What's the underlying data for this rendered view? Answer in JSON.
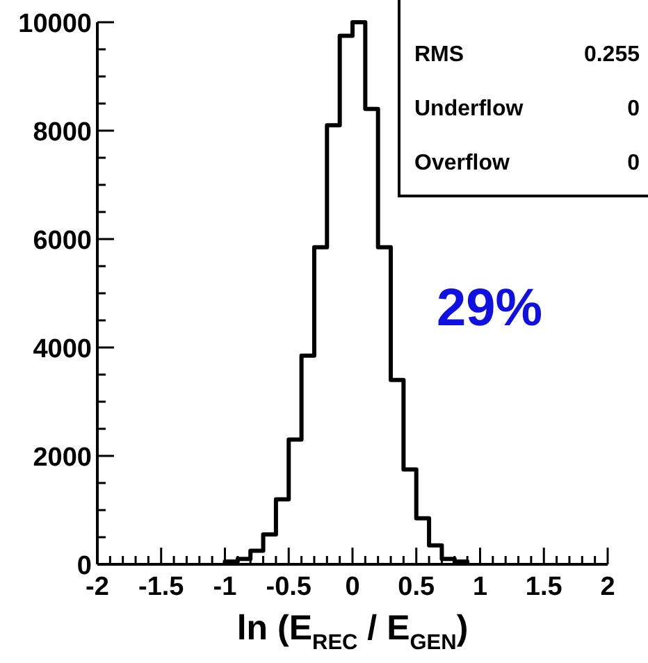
{
  "chart_data": {
    "type": "histogram",
    "xlabel": "ln (E$_{REC}$ / E$_{GEN}$)",
    "bins": [
      -1.0,
      -0.9,
      -0.8,
      -0.7,
      -0.6,
      -0.5,
      -0.4,
      -0.3,
      -0.2,
      -0.1,
      0.0,
      0.1,
      0.2,
      0.3,
      0.4,
      0.5,
      0.6,
      0.7,
      0.8,
      0.9
    ],
    "values": [
      50,
      100,
      250,
      550,
      1200,
      2300,
      3850,
      5850,
      8100,
      9750,
      10000,
      8400,
      5850,
      3400,
      1750,
      850,
      350,
      100,
      50
    ],
    "color": "#000000",
    "xlim": [
      -2,
      2
    ],
    "xticks": [
      -2,
      {
        "value": -1.9,
        "label": null
      },
      {
        "value": -1.8,
        "label": null
      },
      {
        "value": -1.7,
        "label": null
      },
      {
        "value": -1.6,
        "label": null
      },
      -1.5,
      {
        "value": -1.4,
        "label": null
      },
      {
        "value": -1.3,
        "label": null
      },
      {
        "value": -1.2,
        "label": null
      },
      {
        "value": -1.1,
        "label": null
      },
      -1,
      {
        "value": -0.9,
        "label": null
      },
      {
        "value": -0.8,
        "label": null
      },
      {
        "value": -0.7,
        "label": null
      },
      {
        "value": -0.6,
        "label": null
      },
      -0.5,
      {
        "value": -0.4,
        "label": null
      },
      {
        "value": -0.3,
        "label": null
      },
      {
        "value": -0.2,
        "label": null
      },
      {
        "value": -0.1,
        "label": null
      },
      0,
      {
        "value": 0.1,
        "label": null
      },
      {
        "value": 0.2,
        "label": null
      },
      {
        "value": 0.3,
        "label": null
      },
      {
        "value": 0.4,
        "label": null
      },
      0.5,
      {
        "value": 0.6,
        "label": null
      },
      {
        "value": 0.7,
        "label": null
      },
      {
        "value": 0.8,
        "label": null
      },
      {
        "value": 0.9,
        "label": null
      },
      1,
      {
        "value": 1.1,
        "label": null
      },
      {
        "value": 1.2,
        "label": null
      },
      {
        "value": 1.3,
        "label": null
      },
      {
        "value": 1.4,
        "label": null
      },
      1.5,
      {
        "value": 1.6,
        "label": null
      },
      {
        "value": 1.7,
        "label": null
      },
      {
        "value": 1.8,
        "label": null
      },
      {
        "value": 1.9,
        "label": null
      },
      2
    ],
    "ylim": [
      0,
      10000
    ],
    "yticks": [
      0,
      {
        "value": 500,
        "label": null
      },
      {
        "value": 1000,
        "label": null
      },
      {
        "value": 1500,
        "label": null
      },
      2000,
      {
        "value": 2500,
        "label": null
      },
      {
        "value": 3000,
        "label": null
      },
      {
        "value": 3500,
        "label": null
      },
      4000,
      {
        "value": 4500,
        "label": null
      },
      {
        "value": 5000,
        "label": null
      },
      {
        "value": 5500,
        "label": null
      },
      6000,
      {
        "value": 6500,
        "label": null
      },
      {
        "value": 7000,
        "label": null
      },
      {
        "value": 7500,
        "label": null
      },
      8000,
      {
        "value": 8500,
        "label": null
      },
      {
        "value": 9000,
        "label": null
      },
      {
        "value": 9500,
        "label": null
      },
      10000
    ],
    "annotations": [
      "RMS",
      "0.255",
      "Underflow",
      "0",
      "Overflow",
      "0",
      {
        "text": "29%"
      }
    ],
    "grid": false
  }
}
